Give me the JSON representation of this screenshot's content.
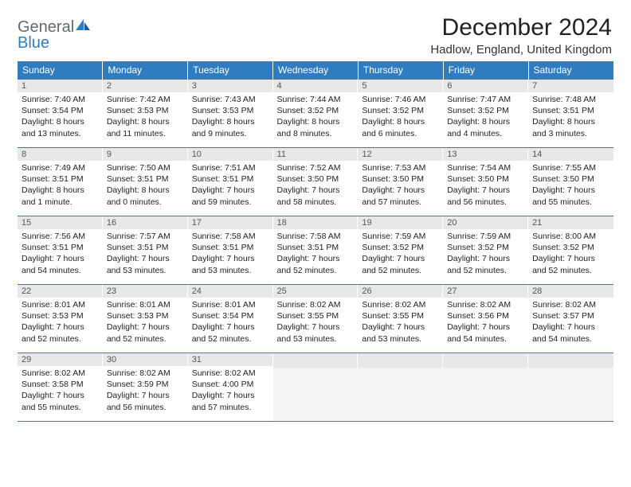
{
  "brand": {
    "name_part1": "General",
    "name_part2": "Blue",
    "color_gray": "#5e6a74",
    "color_blue": "#2f7dc0"
  },
  "header": {
    "month_title": "December 2024",
    "location": "Hadlow, England, United Kingdom"
  },
  "colors": {
    "header_bg": "#2f7dc0",
    "header_text": "#ffffff",
    "daynum_bg": "#e8e8e8",
    "daynum_text": "#555555",
    "row_border": "#2f7dc0",
    "body_text": "#222222",
    "blank_bg": "#f4f4f4"
  },
  "typography": {
    "title_fontsize": 30,
    "location_fontsize": 15,
    "header_fontsize": 12,
    "cell_fontsize": 10.5
  },
  "day_headers": [
    "Sunday",
    "Monday",
    "Tuesday",
    "Wednesday",
    "Thursday",
    "Friday",
    "Saturday"
  ],
  "days": [
    {
      "n": "1",
      "sunrise": "Sunrise: 7:40 AM",
      "sunset": "Sunset: 3:54 PM",
      "daylight1": "Daylight: 8 hours",
      "daylight2": "and 13 minutes."
    },
    {
      "n": "2",
      "sunrise": "Sunrise: 7:42 AM",
      "sunset": "Sunset: 3:53 PM",
      "daylight1": "Daylight: 8 hours",
      "daylight2": "and 11 minutes."
    },
    {
      "n": "3",
      "sunrise": "Sunrise: 7:43 AM",
      "sunset": "Sunset: 3:53 PM",
      "daylight1": "Daylight: 8 hours",
      "daylight2": "and 9 minutes."
    },
    {
      "n": "4",
      "sunrise": "Sunrise: 7:44 AM",
      "sunset": "Sunset: 3:52 PM",
      "daylight1": "Daylight: 8 hours",
      "daylight2": "and 8 minutes."
    },
    {
      "n": "5",
      "sunrise": "Sunrise: 7:46 AM",
      "sunset": "Sunset: 3:52 PM",
      "daylight1": "Daylight: 8 hours",
      "daylight2": "and 6 minutes."
    },
    {
      "n": "6",
      "sunrise": "Sunrise: 7:47 AM",
      "sunset": "Sunset: 3:52 PM",
      "daylight1": "Daylight: 8 hours",
      "daylight2": "and 4 minutes."
    },
    {
      "n": "7",
      "sunrise": "Sunrise: 7:48 AM",
      "sunset": "Sunset: 3:51 PM",
      "daylight1": "Daylight: 8 hours",
      "daylight2": "and 3 minutes."
    },
    {
      "n": "8",
      "sunrise": "Sunrise: 7:49 AM",
      "sunset": "Sunset: 3:51 PM",
      "daylight1": "Daylight: 8 hours",
      "daylight2": "and 1 minute."
    },
    {
      "n": "9",
      "sunrise": "Sunrise: 7:50 AM",
      "sunset": "Sunset: 3:51 PM",
      "daylight1": "Daylight: 8 hours",
      "daylight2": "and 0 minutes."
    },
    {
      "n": "10",
      "sunrise": "Sunrise: 7:51 AM",
      "sunset": "Sunset: 3:51 PM",
      "daylight1": "Daylight: 7 hours",
      "daylight2": "and 59 minutes."
    },
    {
      "n": "11",
      "sunrise": "Sunrise: 7:52 AM",
      "sunset": "Sunset: 3:50 PM",
      "daylight1": "Daylight: 7 hours",
      "daylight2": "and 58 minutes."
    },
    {
      "n": "12",
      "sunrise": "Sunrise: 7:53 AM",
      "sunset": "Sunset: 3:50 PM",
      "daylight1": "Daylight: 7 hours",
      "daylight2": "and 57 minutes."
    },
    {
      "n": "13",
      "sunrise": "Sunrise: 7:54 AM",
      "sunset": "Sunset: 3:50 PM",
      "daylight1": "Daylight: 7 hours",
      "daylight2": "and 56 minutes."
    },
    {
      "n": "14",
      "sunrise": "Sunrise: 7:55 AM",
      "sunset": "Sunset: 3:50 PM",
      "daylight1": "Daylight: 7 hours",
      "daylight2": "and 55 minutes."
    },
    {
      "n": "15",
      "sunrise": "Sunrise: 7:56 AM",
      "sunset": "Sunset: 3:51 PM",
      "daylight1": "Daylight: 7 hours",
      "daylight2": "and 54 minutes."
    },
    {
      "n": "16",
      "sunrise": "Sunrise: 7:57 AM",
      "sunset": "Sunset: 3:51 PM",
      "daylight1": "Daylight: 7 hours",
      "daylight2": "and 53 minutes."
    },
    {
      "n": "17",
      "sunrise": "Sunrise: 7:58 AM",
      "sunset": "Sunset: 3:51 PM",
      "daylight1": "Daylight: 7 hours",
      "daylight2": "and 53 minutes."
    },
    {
      "n": "18",
      "sunrise": "Sunrise: 7:58 AM",
      "sunset": "Sunset: 3:51 PM",
      "daylight1": "Daylight: 7 hours",
      "daylight2": "and 52 minutes."
    },
    {
      "n": "19",
      "sunrise": "Sunrise: 7:59 AM",
      "sunset": "Sunset: 3:52 PM",
      "daylight1": "Daylight: 7 hours",
      "daylight2": "and 52 minutes."
    },
    {
      "n": "20",
      "sunrise": "Sunrise: 7:59 AM",
      "sunset": "Sunset: 3:52 PM",
      "daylight1": "Daylight: 7 hours",
      "daylight2": "and 52 minutes."
    },
    {
      "n": "21",
      "sunrise": "Sunrise: 8:00 AM",
      "sunset": "Sunset: 3:52 PM",
      "daylight1": "Daylight: 7 hours",
      "daylight2": "and 52 minutes."
    },
    {
      "n": "22",
      "sunrise": "Sunrise: 8:01 AM",
      "sunset": "Sunset: 3:53 PM",
      "daylight1": "Daylight: 7 hours",
      "daylight2": "and 52 minutes."
    },
    {
      "n": "23",
      "sunrise": "Sunrise: 8:01 AM",
      "sunset": "Sunset: 3:53 PM",
      "daylight1": "Daylight: 7 hours",
      "daylight2": "and 52 minutes."
    },
    {
      "n": "24",
      "sunrise": "Sunrise: 8:01 AM",
      "sunset": "Sunset: 3:54 PM",
      "daylight1": "Daylight: 7 hours",
      "daylight2": "and 52 minutes."
    },
    {
      "n": "25",
      "sunrise": "Sunrise: 8:02 AM",
      "sunset": "Sunset: 3:55 PM",
      "daylight1": "Daylight: 7 hours",
      "daylight2": "and 53 minutes."
    },
    {
      "n": "26",
      "sunrise": "Sunrise: 8:02 AM",
      "sunset": "Sunset: 3:55 PM",
      "daylight1": "Daylight: 7 hours",
      "daylight2": "and 53 minutes."
    },
    {
      "n": "27",
      "sunrise": "Sunrise: 8:02 AM",
      "sunset": "Sunset: 3:56 PM",
      "daylight1": "Daylight: 7 hours",
      "daylight2": "and 54 minutes."
    },
    {
      "n": "28",
      "sunrise": "Sunrise: 8:02 AM",
      "sunset": "Sunset: 3:57 PM",
      "daylight1": "Daylight: 7 hours",
      "daylight2": "and 54 minutes."
    },
    {
      "n": "29",
      "sunrise": "Sunrise: 8:02 AM",
      "sunset": "Sunset: 3:58 PM",
      "daylight1": "Daylight: 7 hours",
      "daylight2": "and 55 minutes."
    },
    {
      "n": "30",
      "sunrise": "Sunrise: 8:02 AM",
      "sunset": "Sunset: 3:59 PM",
      "daylight1": "Daylight: 7 hours",
      "daylight2": "and 56 minutes."
    },
    {
      "n": "31",
      "sunrise": "Sunrise: 8:02 AM",
      "sunset": "Sunset: 4:00 PM",
      "daylight1": "Daylight: 7 hours",
      "daylight2": "and 57 minutes."
    }
  ],
  "layout": {
    "columns": 7,
    "rows": 5,
    "first_weekday_index": 0,
    "trailing_blanks": 4
  }
}
